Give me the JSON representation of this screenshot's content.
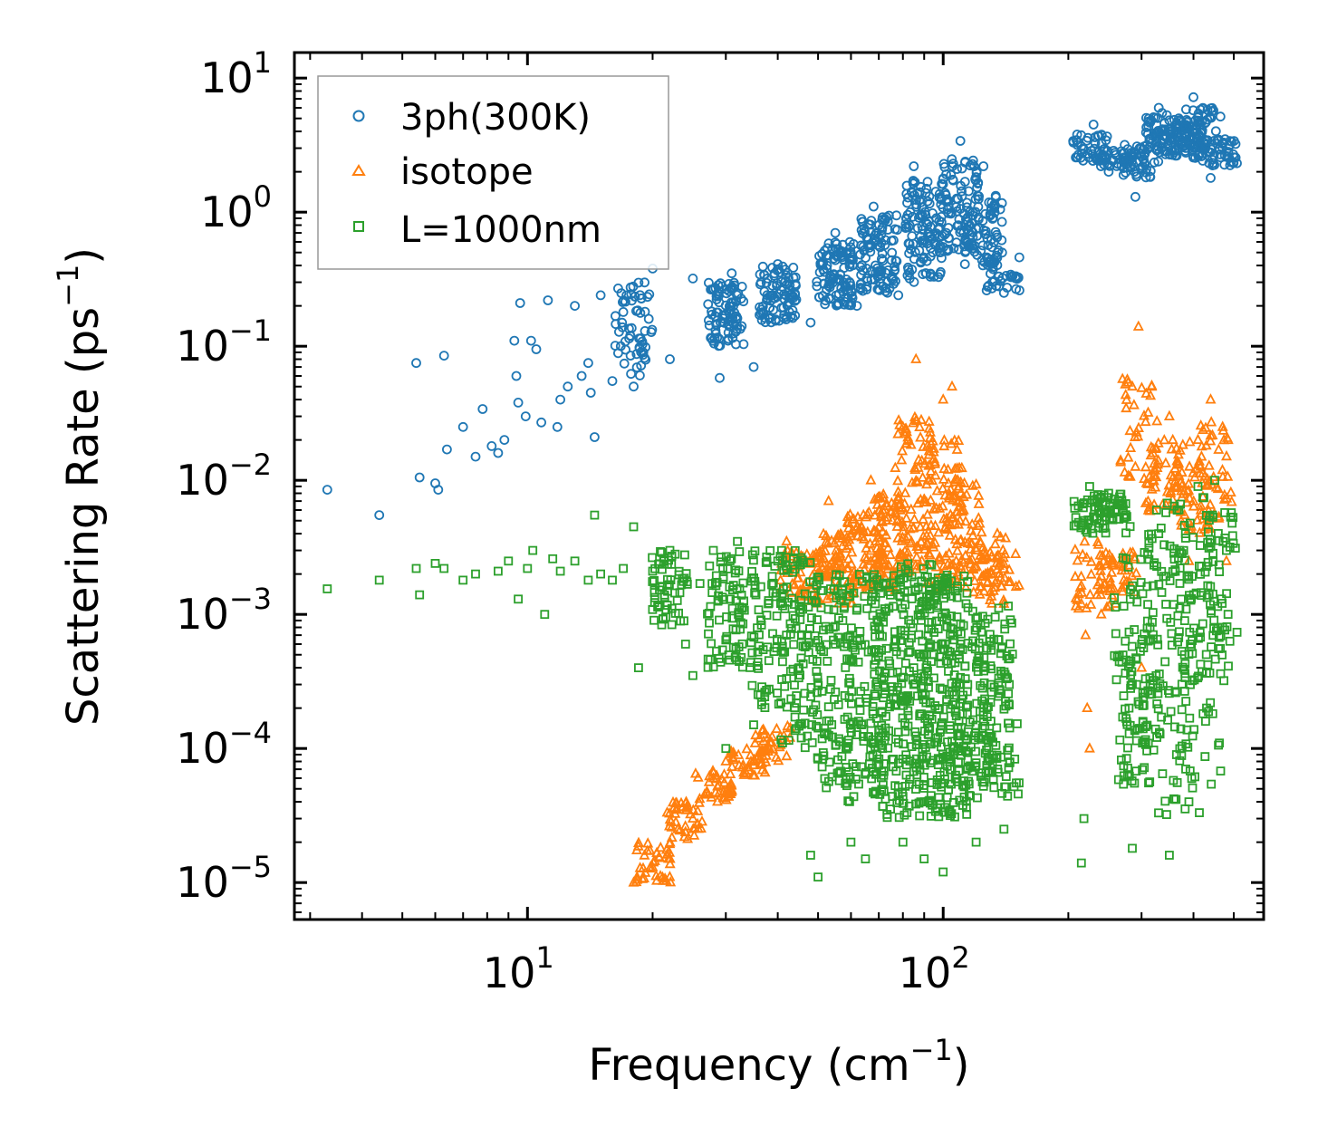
{
  "chart_data": {
    "type": "scatter",
    "title": "",
    "xlabel": "Frequency (cm",
    "xlabel_sup": "−1",
    "xlabel_close": ")",
    "ylabel": "Scattering Rate (ps",
    "ylabel_sup": "−1",
    "ylabel_close": ")",
    "xscale": "log",
    "yscale": "log",
    "xlim": [
      2.75,
      590
    ],
    "ylim": [
      5.3e-06,
      15.5
    ],
    "x_ticks": [
      {
        "value": 10,
        "base": "10",
        "exp": "1"
      },
      {
        "value": 100,
        "base": "10",
        "exp": "2"
      }
    ],
    "y_ticks": [
      {
        "value": 10,
        "base": "10",
        "exp": "1"
      },
      {
        "value": 1,
        "base": "10",
        "exp": "0"
      },
      {
        "value": 0.1,
        "base": "10",
        "exp": "−1"
      },
      {
        "value": 0.01,
        "base": "10",
        "exp": "−2"
      },
      {
        "value": 0.001,
        "base": "10",
        "exp": "−3"
      },
      {
        "value": 0.0001,
        "base": "10",
        "exp": "−4"
      },
      {
        "value": 1e-05,
        "base": "10",
        "exp": "−5"
      }
    ],
    "legend_position": "top-left",
    "series": [
      {
        "name": "3ph(300K)",
        "marker": "circle",
        "color": "#1f77b4",
        "anchors": [
          [
            3.3,
            0.0085
          ],
          [
            4.4,
            0.0055
          ],
          [
            5.4,
            0.075
          ],
          [
            5.5,
            0.0105
          ],
          [
            6.0,
            0.0095
          ],
          [
            6.1,
            0.0085
          ],
          [
            6.3,
            0.085
          ],
          [
            6.4,
            0.017
          ],
          [
            7.0,
            0.025
          ],
          [
            7.5,
            0.015
          ],
          [
            7.8,
            0.034
          ],
          [
            8.2,
            0.018
          ],
          [
            8.5,
            0.016
          ],
          [
            8.8,
            0.02
          ],
          [
            9.3,
            0.11
          ],
          [
            9.4,
            0.06
          ],
          [
            9.5,
            0.038
          ],
          [
            9.6,
            0.21
          ],
          [
            9.9,
            0.03
          ],
          [
            10.2,
            0.11
          ],
          [
            10.5,
            0.095
          ],
          [
            10.8,
            0.027
          ],
          [
            11.2,
            0.22
          ],
          [
            11.8,
            0.025
          ],
          [
            12.0,
            0.04
          ],
          [
            12.5,
            0.05
          ],
          [
            13.0,
            0.2
          ],
          [
            13.5,
            0.06
          ],
          [
            14.0,
            0.075
          ],
          [
            14.2,
            0.045
          ],
          [
            14.5,
            0.021
          ],
          [
            15.0,
            0.24
          ],
          [
            16.0,
            0.055
          ],
          [
            17.0,
            0.18
          ],
          [
            18.0,
            0.05
          ],
          [
            19.0,
            0.09
          ],
          [
            20.0,
            0.38
          ],
          [
            22.0,
            0.08
          ],
          [
            25.0,
            0.32
          ],
          [
            29.0,
            0.058
          ],
          [
            31.0,
            0.35
          ],
          [
            35.0,
            0.07
          ],
          [
            40.0,
            0.41
          ],
          [
            48.0,
            0.15
          ],
          [
            55.0,
            0.7
          ],
          [
            62.0,
            0.2
          ],
          [
            68.0,
            1.1
          ],
          [
            78.0,
            0.24
          ],
          [
            85.0,
            2.2
          ],
          [
            95.0,
            0.33
          ],
          [
            110.0,
            3.4
          ],
          [
            112.0,
            0.7
          ],
          [
            125.0,
            2.2
          ],
          [
            135.0,
            0.5
          ],
          [
            140.0,
            0.25
          ],
          [
            215.0,
            3.1
          ],
          [
            230.0,
            4.5
          ],
          [
            250.0,
            2.0
          ],
          [
            280.0,
            2.4
          ],
          [
            290.0,
            1.3
          ],
          [
            300.0,
            2.6
          ],
          [
            330.0,
            6.0
          ],
          [
            360.0,
            2.8
          ],
          [
            400.0,
            7.2
          ],
          [
            440.0,
            1.8
          ],
          [
            470.0,
            3.0
          ]
        ],
        "bands": [
          [
            18.0,
            0.06,
            0.3,
            60
          ],
          [
            30.0,
            0.1,
            0.3,
            90
          ],
          [
            40.0,
            0.15,
            0.4,
            90
          ],
          [
            55.0,
            0.2,
            0.6,
            110
          ],
          [
            70.0,
            0.25,
            1.0,
            110
          ],
          [
            90.0,
            0.3,
            1.8,
            120
          ],
          [
            110.0,
            0.5,
            2.5,
            100
          ],
          [
            125.0,
            0.4,
            1.5,
            60
          ],
          [
            138.0,
            0.26,
            0.5,
            40
          ],
          [
            225.0,
            2.4,
            3.8,
            40
          ],
          [
            260.0,
            2.2,
            2.9,
            40
          ],
          [
            300.0,
            1.8,
            3.2,
            50
          ],
          [
            340.0,
            2.8,
            5.5,
            60
          ],
          [
            380.0,
            2.5,
            4.5,
            60
          ],
          [
            420.0,
            3.0,
            6.0,
            50
          ],
          [
            460.0,
            2.2,
            3.5,
            50
          ]
        ]
      },
      {
        "name": "isotope",
        "marker": "triangle",
        "color": "#ff7f0e",
        "anchors": [
          [
            18.0,
            1e-05
          ],
          [
            20.0,
            1.3e-05
          ],
          [
            23.0,
            2.5e-05
          ],
          [
            25.0,
            3e-05
          ],
          [
            28.0,
            6e-05
          ],
          [
            30.0,
            8e-05
          ],
          [
            35.0,
            8e-05
          ],
          [
            38.0,
            0.0001
          ],
          [
            42.0,
            0.0035
          ],
          [
            47.0,
            0.0028
          ],
          [
            53.0,
            0.007
          ],
          [
            60.0,
            0.004
          ],
          [
            67.0,
            0.01
          ],
          [
            73.0,
            0.005
          ],
          [
            80.0,
            0.025
          ],
          [
            86.0,
            0.08
          ],
          [
            92.0,
            0.01
          ],
          [
            100.0,
            0.04
          ],
          [
            105.0,
            0.05
          ],
          [
            112.0,
            0.0075
          ],
          [
            120.0,
            0.003
          ],
          [
            135.0,
            0.004
          ],
          [
            140.0,
            0.0012
          ],
          [
            215.0,
            0.0012
          ],
          [
            220.0,
            0.0007
          ],
          [
            222.0,
            0.0002
          ],
          [
            225.0,
            0.0001
          ],
          [
            240.0,
            0.001
          ],
          [
            260.0,
            0.0012
          ],
          [
            285.0,
            0.05
          ],
          [
            295.0,
            0.14
          ],
          [
            300.0,
            0.0004
          ],
          [
            320.0,
            0.01
          ],
          [
            350.0,
            0.03
          ],
          [
            390.0,
            0.0025
          ],
          [
            410.0,
            0.02
          ],
          [
            440.0,
            0.04
          ],
          [
            470.0,
            0.025
          ],
          [
            480.0,
            0.0025
          ]
        ],
        "bands": [
          [
            20.0,
            1e-05,
            2e-05,
            40
          ],
          [
            24.0,
            2e-05,
            4e-05,
            40
          ],
          [
            28.0,
            4e-05,
            7e-05,
            40
          ],
          [
            34.0,
            6e-05,
            0.0001,
            40
          ],
          [
            39.0,
            8e-05,
            0.00015,
            30
          ],
          [
            45.0,
            0.0012,
            0.003,
            60
          ],
          [
            55.0,
            0.0012,
            0.004,
            80
          ],
          [
            65.0,
            0.0015,
            0.006,
            80
          ],
          [
            75.0,
            0.0015,
            0.008,
            80
          ],
          [
            85.0,
            0.002,
            0.03,
            90
          ],
          [
            100.0,
            0.0015,
            0.02,
            90
          ],
          [
            112.0,
            0.0015,
            0.01,
            60
          ],
          [
            128.0,
            0.0012,
            0.004,
            40
          ],
          [
            138.0,
            0.0015,
            0.003,
            30
          ],
          [
            230.0,
            0.0011,
            0.0035,
            40
          ],
          [
            265.0,
            0.0014,
            0.003,
            40
          ],
          [
            295.0,
            0.01,
            0.06,
            40
          ],
          [
            340.0,
            0.005,
            0.02,
            50
          ],
          [
            400.0,
            0.004,
            0.02,
            50
          ],
          [
            450.0,
            0.005,
            0.03,
            40
          ]
        ]
      },
      {
        "name": "L=1000nm",
        "marker": "square",
        "color": "#2ca02c",
        "anchors": [
          [
            3.3,
            0.00155
          ],
          [
            4.4,
            0.0018
          ],
          [
            5.4,
            0.0022
          ],
          [
            5.5,
            0.0014
          ],
          [
            6.0,
            0.0024
          ],
          [
            6.3,
            0.0022
          ],
          [
            7.0,
            0.0018
          ],
          [
            7.5,
            0.002
          ],
          [
            8.5,
            0.0021
          ],
          [
            9.0,
            0.0025
          ],
          [
            9.5,
            0.0013
          ],
          [
            10.0,
            0.0022
          ],
          [
            10.3,
            0.003
          ],
          [
            11.0,
            0.001
          ],
          [
            11.5,
            0.0026
          ],
          [
            12.0,
            0.0021
          ],
          [
            13.0,
            0.0025
          ],
          [
            14.0,
            0.0018
          ],
          [
            14.5,
            0.0055
          ],
          [
            15.0,
            0.002
          ],
          [
            16.0,
            0.0018
          ],
          [
            17.0,
            0.0022
          ],
          [
            18.0,
            0.0045
          ],
          [
            18.5,
            0.0004
          ],
          [
            20.0,
            0.0021
          ],
          [
            22.0,
            0.003
          ],
          [
            24.0,
            0.0006
          ],
          [
            25.0,
            0.00035
          ],
          [
            26.0,
            0.0017
          ],
          [
            28.0,
            0.003
          ],
          [
            30.0,
            0.0001
          ],
          [
            32.0,
            0.0035
          ],
          [
            35.0,
            0.00015
          ],
          [
            40.0,
            0.0025
          ],
          [
            45.0,
            0.0004
          ],
          [
            48.0,
            1.6e-05
          ],
          [
            50.0,
            1.1e-05
          ],
          [
            55.0,
            0.0006
          ],
          [
            60.0,
            2e-05
          ],
          [
            65.0,
            1.5e-05
          ],
          [
            70.0,
            0.0008
          ],
          [
            80.0,
            2e-05
          ],
          [
            85.0,
            0.0003
          ],
          [
            90.0,
            1.5e-05
          ],
          [
            95.0,
            0.0005
          ],
          [
            100.0,
            1.2e-05
          ],
          [
            110.0,
            0.0006
          ],
          [
            120.0,
            2e-05
          ],
          [
            130.0,
            0.0003
          ],
          [
            140.0,
            2.5e-05
          ],
          [
            215.0,
            1.4e-05
          ],
          [
            218.0,
            3e-05
          ],
          [
            225.0,
            0.009
          ],
          [
            240.0,
            0.0075
          ],
          [
            250.0,
            0.008
          ],
          [
            265.0,
            0.007
          ],
          [
            280.0,
            0.0002
          ],
          [
            285.0,
            1.8e-05
          ],
          [
            300.0,
            0.0006
          ],
          [
            330.0,
            0.004
          ],
          [
            350.0,
            1.6e-05
          ],
          [
            370.0,
            0.003
          ],
          [
            390.0,
            4e-05
          ],
          [
            410.0,
            0.009
          ],
          [
            430.0,
            0.0002
          ],
          [
            450.0,
            0.01
          ],
          [
            470.0,
            0.0008
          ],
          [
            480.0,
            0.003
          ]
        ],
        "bands": [
          [
            22.0,
            0.0008,
            0.003,
            60
          ],
          [
            30.0,
            0.0004,
            0.003,
            80
          ],
          [
            38.0,
            0.0002,
            0.003,
            80
          ],
          [
            45.0,
            0.0001,
            0.003,
            100
          ],
          [
            55.0,
            5e-05,
            0.002,
            110
          ],
          [
            65.0,
            4e-05,
            0.002,
            110
          ],
          [
            75.0,
            3e-05,
            0.002,
            120
          ],
          [
            85.0,
            3e-05,
            0.0025,
            120
          ],
          [
            95.0,
            3e-05,
            0.002,
            120
          ],
          [
            105.0,
            3e-05,
            0.002,
            110
          ],
          [
            118.0,
            4e-05,
            0.0015,
            90
          ],
          [
            132.0,
            5e-05,
            0.001,
            70
          ],
          [
            138.0,
            4e-05,
            0.0012,
            50
          ],
          [
            228.0,
            0.004,
            0.008,
            40
          ],
          [
            250.0,
            0.005,
            0.008,
            40
          ],
          [
            285.0,
            5e-05,
            0.003,
            60
          ],
          [
            300.0,
            5e-05,
            0.005,
            60
          ],
          [
            340.0,
            3e-05,
            0.006,
            60
          ],
          [
            380.0,
            5e-05,
            0.008,
            60
          ],
          [
            420.0,
            3e-05,
            0.008,
            60
          ],
          [
            460.0,
            0.0003,
            0.006,
            50
          ]
        ]
      }
    ]
  }
}
